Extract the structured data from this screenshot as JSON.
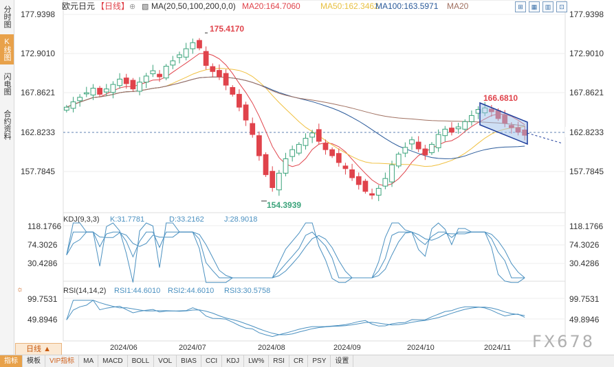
{
  "sidebar": {
    "tabs": [
      {
        "label": "分时图",
        "active": false
      },
      {
        "label": "K线图",
        "active": true
      },
      {
        "label": "闪电图",
        "active": false
      },
      {
        "label": "合约资料",
        "active": false
      }
    ]
  },
  "header": {
    "symbol": "欧元日元",
    "period": "【日线】",
    "ma_label": "MA(20,50,100,200,0,0)",
    "ma20": "MA20:164.7060",
    "ma50": "MA50:162.3462",
    "ma100": "MA100:163.5971",
    "ma200": "MA20"
  },
  "colors": {
    "up": "#3aa37a",
    "down": "#e0434b",
    "ma20": "#e0434b",
    "ma50": "#f0c040",
    "ma100": "#2a5a9a",
    "ma200": "#a07060",
    "kdj_k": "#4a90c0",
    "rsi": "#4a90c0"
  },
  "price_axis": {
    "left": [
      "177.9398",
      "172.9010",
      "167.8621",
      "162.8233",
      "157.7845"
    ],
    "right": [
      "177.9398",
      "172.9010",
      "167.8621",
      "162.8233",
      "157.7845"
    ],
    "current": "162.8233"
  },
  "annotations": {
    "high": "175.4170",
    "low": "154.3939",
    "recent_high": "166.6810"
  },
  "kdj": {
    "label": "KDJ(9,3,3)",
    "k": "K:31.7781",
    "d": "D:33.2162",
    "j": "J:28.9018",
    "axis": [
      "118.1766",
      "74.3026",
      "30.4286"
    ]
  },
  "rsi": {
    "label": "RSI(14,14,2)",
    "rsi1": "RSI1:44.6010",
    "rsi2": "RSI2:44.6010",
    "rsi3": "RSI3:30.5758",
    "axis": [
      "99.7531",
      "49.8946"
    ]
  },
  "time_axis": [
    "2024/06",
    "2024/07",
    "2024/08",
    "2024/09",
    "2024/10",
    "2024/11"
  ],
  "period_tag": "日线 ▲",
  "toolbar": [
    "指标",
    "模板",
    "VIP指标",
    "MA",
    "MACD",
    "BOLL",
    "VOL",
    "BIAS",
    "CCI",
    "KDJ",
    "LW%",
    "RSI",
    "CR",
    "PSY",
    "设置"
  ],
  "watermark": "FX678",
  "chart_data": {
    "type": "candlestick",
    "title": "欧元日元",
    "ylim": [
      153.5,
      179.0
    ],
    "series_close": [
      166.5,
      167.2,
      167.8,
      168.4,
      169.0,
      168.2,
      168.9,
      169.5,
      170.2,
      169.6,
      168.9,
      169.8,
      170.6,
      171.3,
      170.5,
      171.9,
      172.6,
      173.4,
      174.2,
      175.0,
      174.3,
      172.0,
      171.2,
      170.5,
      169.4,
      168.2,
      166.5,
      164.8,
      162.9,
      160.1,
      157.6,
      155.9,
      157.8,
      159.7,
      160.9,
      161.6,
      162.4,
      163.1,
      162.0,
      160.9,
      160.1,
      159.2,
      158.4,
      157.2,
      156.3,
      155.4,
      154.9,
      155.8,
      157.1,
      158.9,
      160.3,
      161.2,
      162.2,
      161.0,
      160.2,
      161.6,
      162.9,
      163.6,
      163.2,
      163.9,
      164.6,
      165.4,
      166.2,
      166.4,
      165.9,
      165.0,
      164.4,
      163.8,
      163.2,
      162.8
    ]
  }
}
